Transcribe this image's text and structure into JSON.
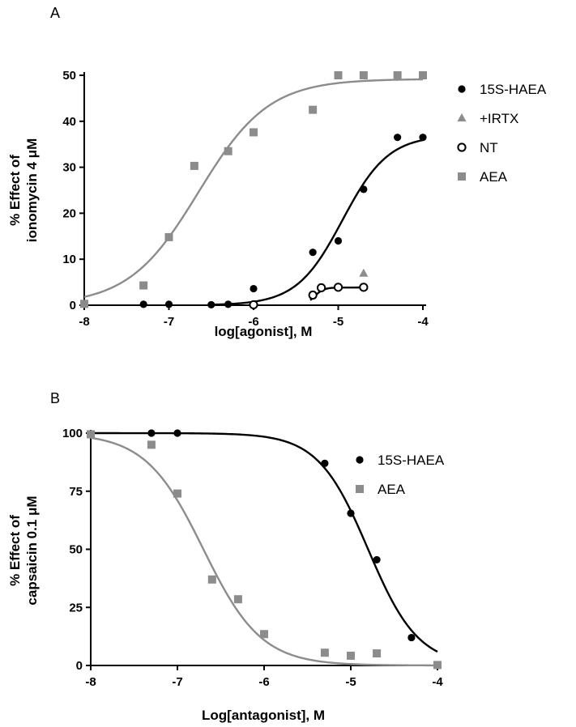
{
  "chart_data": [
    {
      "type": "scatter",
      "panel_label": "A",
      "xlabel": "log[agonist], M",
      "ylabel": [
        "% Effect of",
        "ionomycin 4 μM"
      ],
      "xlim": [
        -8,
        -4
      ],
      "ylim": [
        0,
        50
      ],
      "x_ticks": [
        -8,
        -7,
        -6,
        -5,
        -4
      ],
      "y_ticks": [
        0,
        10,
        20,
        30,
        40,
        50
      ],
      "grid": false,
      "legend_position": "top-right",
      "series": [
        {
          "name": "15S-HAEA",
          "marker": "filled-circle",
          "color": "#000000",
          "points": [
            [
              -7.3,
              0.2
            ],
            [
              -7.0,
              0.2
            ],
            [
              -6.5,
              0.1
            ],
            [
              -6.3,
              0.2
            ],
            [
              -6.0,
              3.6
            ],
            [
              -5.3,
              11.5
            ],
            [
              -5.0,
              14.0
            ],
            [
              -4.7,
              25.2
            ],
            [
              -4.3,
              36.5
            ],
            [
              -4.0,
              36.5
            ]
          ],
          "curve": {
            "bottom": 0,
            "top": 37,
            "log_ec50": -4.95,
            "hill": 1.6,
            "x_range": [
              -6.5,
              -4.0
            ]
          }
        },
        {
          "name": "+IRTX",
          "marker": "filled-triangle",
          "color": "#8c8c8c",
          "points": [
            [
              -4.7,
              6.9
            ]
          ]
        },
        {
          "name": "NT",
          "marker": "open-circle",
          "color": "#000000",
          "points": [
            [
              -6.0,
              0.1
            ],
            [
              -5.3,
              2.2
            ],
            [
              -5.2,
              3.8
            ],
            [
              -5.0,
              3.9
            ],
            [
              -4.7,
              3.9
            ]
          ],
          "curve": {
            "bottom": 0,
            "top": 3.85,
            "log_ec50": -5.28,
            "hill": 8,
            "x_range": [
              -5.33,
              -4.7
            ]
          }
        },
        {
          "name": "AEA",
          "marker": "filled-square",
          "color": "#8c8c8c",
          "points": [
            [
              -8.0,
              0.3
            ],
            [
              -7.3,
              4.3
            ],
            [
              -7.0,
              14.8
            ],
            [
              -6.7,
              30.3
            ],
            [
              -6.3,
              33.5
            ],
            [
              -6.0,
              37.6
            ],
            [
              -5.3,
              42.5
            ],
            [
              -5.0,
              50.0
            ],
            [
              -4.7,
              50.0
            ],
            [
              -4.3,
              50.0
            ],
            [
              -4.0,
              50.0
            ]
          ],
          "curve": {
            "bottom": 0,
            "top": 49.2,
            "log_ec50": -6.65,
            "hill": 1.05,
            "x_range": [
              -8.0,
              -4.0
            ]
          }
        }
      ]
    },
    {
      "type": "scatter",
      "panel_label": "B",
      "xlabel": "Log[antagonist], M",
      "ylabel": [
        "% Effect of",
        "capsaicin 0.1 μM"
      ],
      "xlim": [
        -8,
        -4
      ],
      "ylim": [
        0,
        100
      ],
      "x_ticks": [
        -8,
        -7,
        -6,
        -5,
        -4
      ],
      "y_ticks": [
        0,
        25,
        50,
        75,
        100
      ],
      "grid": false,
      "legend_position": "top-right",
      "series": [
        {
          "name": "15S-HAEA",
          "marker": "filled-circle",
          "color": "#000000",
          "points": [
            [
              -7.3,
              100
            ],
            [
              -7.0,
              100
            ],
            [
              -5.3,
              87
            ],
            [
              -5.0,
              65.5
            ],
            [
              -4.7,
              45.5
            ],
            [
              -4.3,
              12
            ]
          ],
          "curve": {
            "bottom": 0,
            "top": 100,
            "log_ic50": -4.8,
            "hill": -1.5,
            "x_range": [
              -8.0,
              -4.0
            ]
          }
        },
        {
          "name": "AEA",
          "marker": "filled-square",
          "color": "#8c8c8c",
          "points": [
            [
              -8.0,
              99.5
            ],
            [
              -7.3,
              95
            ],
            [
              -7.0,
              74
            ],
            [
              -6.6,
              37
            ],
            [
              -6.3,
              28.5
            ],
            [
              -6.0,
              13.5
            ],
            [
              -5.3,
              5.5
            ],
            [
              -5.0,
              4.2
            ],
            [
              -4.7,
              5.2
            ],
            [
              -4.0,
              0.2
            ]
          ],
          "curve": {
            "bottom": 0,
            "top": 100,
            "log_ic50": -6.7,
            "hill": -1.3,
            "x_range": [
              -8.0,
              -4.0
            ]
          }
        }
      ]
    }
  ]
}
